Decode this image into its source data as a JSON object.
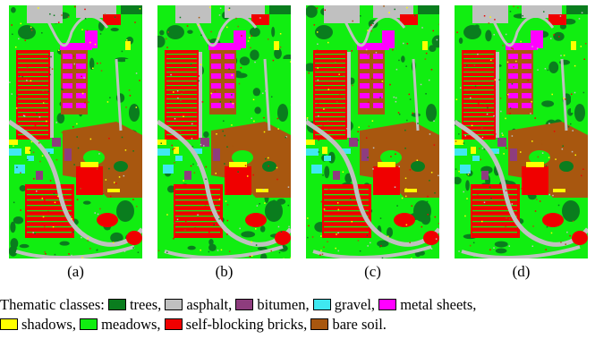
{
  "panels": [
    {
      "caption": "(a)"
    },
    {
      "caption": "(b)"
    },
    {
      "caption": "(c)"
    },
    {
      "caption": "(d)"
    }
  ],
  "legend": {
    "title": "Thematic classes:",
    "classes": [
      {
        "label": "trees,",
        "color": "#0a7d1e"
      },
      {
        "label": "asphalt,",
        "color": "#c0c0c0"
      },
      {
        "label": "bitumen,",
        "color": "#8e3d7e"
      },
      {
        "label": "gravel,",
        "color": "#3fe8f0"
      },
      {
        "label": "metal sheets,",
        "color": "#ff00ff"
      },
      {
        "label": "shadows,",
        "color": "#ffff00"
      },
      {
        "label": "meadows,",
        "color": "#11ee11"
      },
      {
        "label": "self-blocking bricks,",
        "color": "#f00000"
      },
      {
        "label": "bare soil.",
        "color": "#a8570f"
      }
    ]
  }
}
